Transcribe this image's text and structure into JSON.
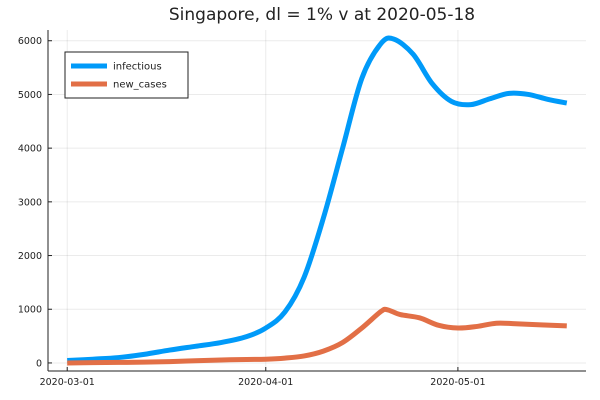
{
  "chart_data": {
    "type": "line",
    "title": "Singapore,  dl = 1% v at 2020-05-18",
    "xlabel": "",
    "ylabel": "",
    "x_ticks": [
      "2020-03-01",
      "2020-04-01",
      "2020-05-01"
    ],
    "x_tick_dates": [
      "2020-03-01",
      "2020-04-01",
      "2020-05-01"
    ],
    "xlim": [
      "2020-02-27",
      "2020-05-21"
    ],
    "ylim": [
      -150,
      6200
    ],
    "y_ticks": [
      0,
      1000,
      2000,
      3000,
      4000,
      5000,
      6000
    ],
    "grid": true,
    "legend_position": "top-left",
    "series": [
      {
        "name": "infectious",
        "color": "#009af9",
        "points": [
          [
            "2020-03-01",
            45
          ],
          [
            "2020-03-05",
            70
          ],
          [
            "2020-03-09",
            100
          ],
          [
            "2020-03-13",
            160
          ],
          [
            "2020-03-17",
            240
          ],
          [
            "2020-03-21",
            310
          ],
          [
            "2020-03-25",
            380
          ],
          [
            "2020-03-29",
            490
          ],
          [
            "2020-04-01",
            650
          ],
          [
            "2020-04-04",
            950
          ],
          [
            "2020-04-07",
            1600
          ],
          [
            "2020-04-10",
            2700
          ],
          [
            "2020-04-13",
            4000
          ],
          [
            "2020-04-16",
            5300
          ],
          [
            "2020-04-19",
            5950
          ],
          [
            "2020-04-21",
            6030
          ],
          [
            "2020-04-24",
            5750
          ],
          [
            "2020-04-27",
            5200
          ],
          [
            "2020-04-30",
            4870
          ],
          [
            "2020-05-03",
            4810
          ],
          [
            "2020-05-06",
            4920
          ],
          [
            "2020-05-09",
            5020
          ],
          [
            "2020-05-12",
            5000
          ],
          [
            "2020-05-15",
            4910
          ],
          [
            "2020-05-18",
            4840
          ]
        ]
      },
      {
        "name": "new_cases",
        "color": "#e26f46",
        "points": [
          [
            "2020-03-01",
            0
          ],
          [
            "2020-03-05",
            5
          ],
          [
            "2020-03-09",
            10
          ],
          [
            "2020-03-13",
            15
          ],
          [
            "2020-03-17",
            25
          ],
          [
            "2020-03-21",
            40
          ],
          [
            "2020-03-25",
            55
          ],
          [
            "2020-03-29",
            65
          ],
          [
            "2020-04-01",
            70
          ],
          [
            "2020-04-04",
            90
          ],
          [
            "2020-04-07",
            130
          ],
          [
            "2020-04-10",
            220
          ],
          [
            "2020-04-13",
            380
          ],
          [
            "2020-04-16",
            650
          ],
          [
            "2020-04-19",
            960
          ],
          [
            "2020-04-20",
            990
          ],
          [
            "2020-04-22",
            900
          ],
          [
            "2020-04-25",
            840
          ],
          [
            "2020-04-28",
            700
          ],
          [
            "2020-05-01",
            650
          ],
          [
            "2020-05-04",
            680
          ],
          [
            "2020-05-07",
            740
          ],
          [
            "2020-05-10",
            730
          ],
          [
            "2020-05-14",
            710
          ],
          [
            "2020-05-18",
            690
          ]
        ]
      }
    ]
  }
}
